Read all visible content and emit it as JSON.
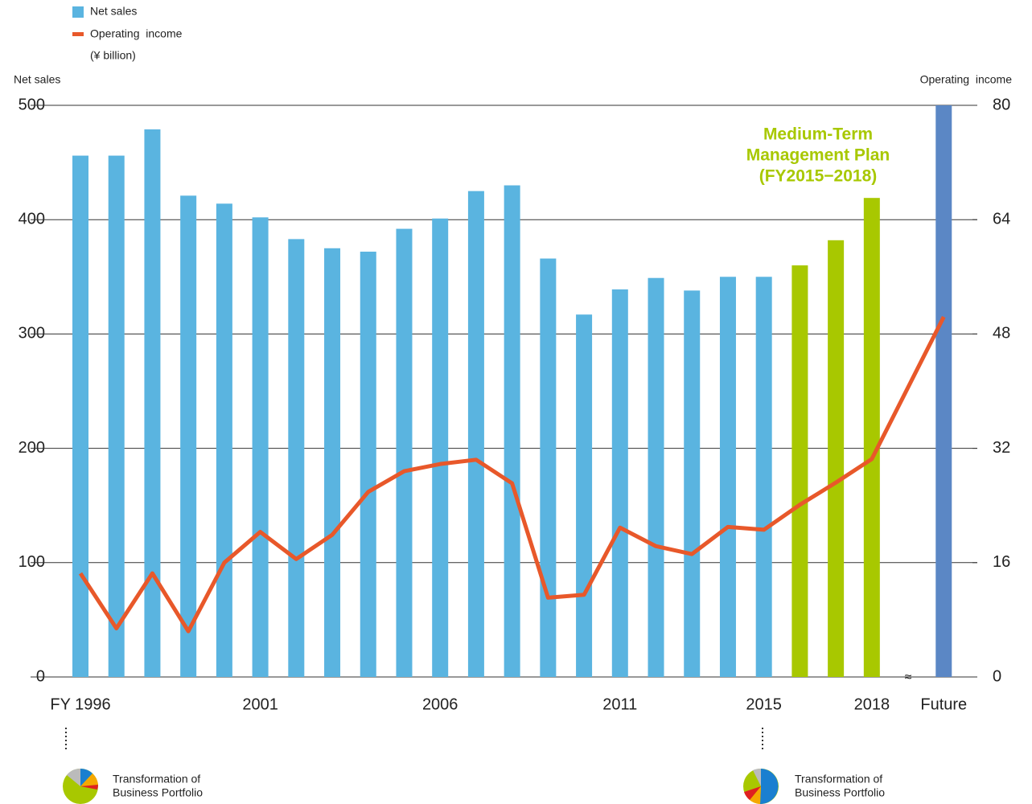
{
  "chart_data": {
    "type": "bar_line",
    "legend": {
      "note": "(¥ billion)"
    },
    "y_label": "Net sales",
    "y2_label": "Operating  income",
    "categories": [
      "FY 1996",
      null,
      null,
      null,
      null,
      "2001",
      null,
      null,
      null,
      null,
      "2006",
      null,
      null,
      null,
      null,
      "2011",
      null,
      null,
      null,
      "2015",
      null,
      null,
      "2018",
      "Future"
    ],
    "axis_break": true,
    "series": [
      {
        "name": "Net sales",
        "type": "bar",
        "color": "#5ab4e0",
        "colors": [
          "#5ab4e0",
          "#5ab4e0",
          "#5ab4e0",
          "#5ab4e0",
          "#5ab4e0",
          "#5ab4e0",
          "#5ab4e0",
          "#5ab4e0",
          "#5ab4e0",
          "#5ab4e0",
          "#5ab4e0",
          "#5ab4e0",
          "#5ab4e0",
          "#5ab4e0",
          "#5ab4e0",
          "#5ab4e0",
          "#5ab4e0",
          "#5ab4e0",
          "#5ab4e0",
          "#5ab4e0",
          "#a8c800",
          "#a8c800",
          "#a8c800",
          "#5b87c5"
        ],
        "values": [
          456,
          456,
          479,
          421,
          414,
          402,
          383,
          375,
          372,
          392,
          401,
          425,
          430,
          366,
          317,
          339,
          349,
          338,
          350,
          350,
          360,
          382,
          419,
          500
        ]
      },
      {
        "name": "Operating  income",
        "type": "line",
        "axis": "y2",
        "color": "#e8582a",
        "values": [
          14.5,
          6.8,
          14.5,
          6.4,
          16.0,
          20.3,
          16.5,
          19.9,
          25.9,
          28.8,
          29.8,
          30.4,
          27.1,
          11.1,
          11.5,
          20.9,
          18.3,
          17.2,
          21.0,
          20.6,
          24.1,
          27.2,
          30.5,
          50.4
        ]
      }
    ],
    "ylim": [
      0,
      500
    ],
    "yticks": [
      0,
      100,
      200,
      300,
      400,
      500
    ],
    "y2lim": [
      0,
      80
    ],
    "y2ticks": [
      0,
      16,
      32,
      48,
      64,
      80
    ],
    "grid": true,
    "annotation": {
      "lines": [
        "Medium-Term",
        "Management Plan",
        "(FY2015−2018)"
      ],
      "color": "#a8c800"
    },
    "footnotes": [
      [
        "Transformation of",
        "Business Portfolio"
      ],
      [
        "Transformation of",
        "Business Portfolio"
      ]
    ]
  }
}
